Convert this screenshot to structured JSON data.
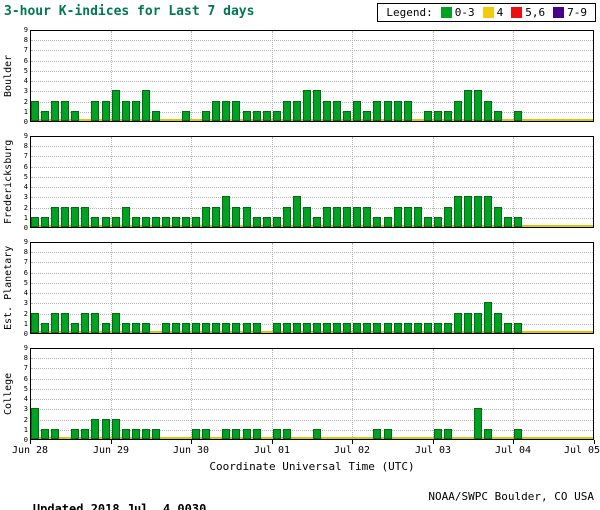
{
  "header": {
    "title": "3-hour K-indices for Last 7 days",
    "legend_label": "Legend:",
    "legend_items": [
      {
        "label": "0-3",
        "color": "#00A221"
      },
      {
        "label": "4",
        "color": "#F2CA0E"
      },
      {
        "label": "5,6",
        "color": "#ED0E0E"
      },
      {
        "label": "7-9",
        "color": "#46008C"
      }
    ]
  },
  "footer": {
    "updated_label": "Updated",
    "updated_value": " 2018 Jul  4 0030",
    "credit": "NOAA/SWPC Boulder, CO USA"
  },
  "chart_data": {
    "type": "bar",
    "title": "3-hour K-indices for Last 7 days",
    "xlabel": "Coordinate Universal Time (UTC)",
    "x_tick_labels": [
      "Jun 28",
      "Jun 29",
      "Jun 30",
      "Jul 01",
      "Jul 02",
      "Jul 03",
      "Jul 04",
      "Jul 05"
    ],
    "y_ticks": [
      0,
      1,
      2,
      3,
      4,
      5,
      6,
      7,
      8,
      9
    ],
    "ylim": [
      0,
      9
    ],
    "bars_per_day": 8,
    "days": 7,
    "hours_per_bar": 3,
    "legend_note": "green 0-3, yellow 4, red 5-6, purple 7-9",
    "series": [
      {
        "name": "Boulder",
        "values": [
          2,
          1,
          2,
          2,
          1,
          0,
          2,
          2,
          3,
          2,
          2,
          3,
          1,
          0,
          0,
          1,
          0,
          1,
          2,
          2,
          2,
          1,
          1,
          1,
          1,
          2,
          2,
          3,
          3,
          2,
          2,
          1,
          2,
          1,
          2,
          2,
          2,
          2,
          0,
          1,
          1,
          1,
          2,
          3,
          3,
          2,
          1,
          0,
          1,
          0,
          0,
          0,
          0,
          0,
          0,
          0
        ]
      },
      {
        "name": "Fredericksburg",
        "values": [
          1,
          1,
          2,
          2,
          2,
          2,
          1,
          1,
          1,
          2,
          1,
          1,
          1,
          1,
          1,
          1,
          1,
          2,
          2,
          3,
          2,
          2,
          1,
          1,
          1,
          2,
          3,
          2,
          1,
          2,
          2,
          2,
          2,
          2,
          1,
          1,
          2,
          2,
          2,
          1,
          1,
          2,
          3,
          3,
          3,
          3,
          2,
          1,
          1,
          0,
          0,
          0,
          0,
          0,
          0,
          0
        ]
      },
      {
        "name": "Est. Planetary",
        "values": [
          2,
          1,
          2,
          2,
          1,
          2,
          2,
          1,
          2,
          1,
          1,
          1,
          0,
          1,
          1,
          1,
          1,
          1,
          1,
          1,
          1,
          1,
          1,
          0,
          1,
          1,
          1,
          1,
          1,
          1,
          1,
          1,
          1,
          1,
          1,
          1,
          1,
          1,
          1,
          1,
          1,
          1,
          2,
          2,
          2,
          3,
          2,
          1,
          1,
          0,
          0,
          0,
          0,
          0,
          0,
          0
        ]
      },
      {
        "name": "College",
        "values": [
          3,
          1,
          1,
          0,
          1,
          1,
          2,
          2,
          2,
          1,
          1,
          1,
          1,
          0,
          0,
          0,
          1,
          1,
          0,
          1,
          1,
          1,
          1,
          0,
          1,
          1,
          0,
          0,
          1,
          0,
          0,
          0,
          0,
          0,
          1,
          1,
          0,
          0,
          0,
          0,
          1,
          1,
          0,
          0,
          3,
          1,
          0,
          0,
          1,
          0,
          0,
          0,
          0,
          0,
          0,
          0
        ]
      }
    ],
    "colors": {
      "bar": "#00A221",
      "bar_border": "#046A14",
      "baseline": "#D8C60C",
      "grid": "#B4B4B4",
      "frame": "#000000",
      "title_text": "#00794E"
    }
  }
}
